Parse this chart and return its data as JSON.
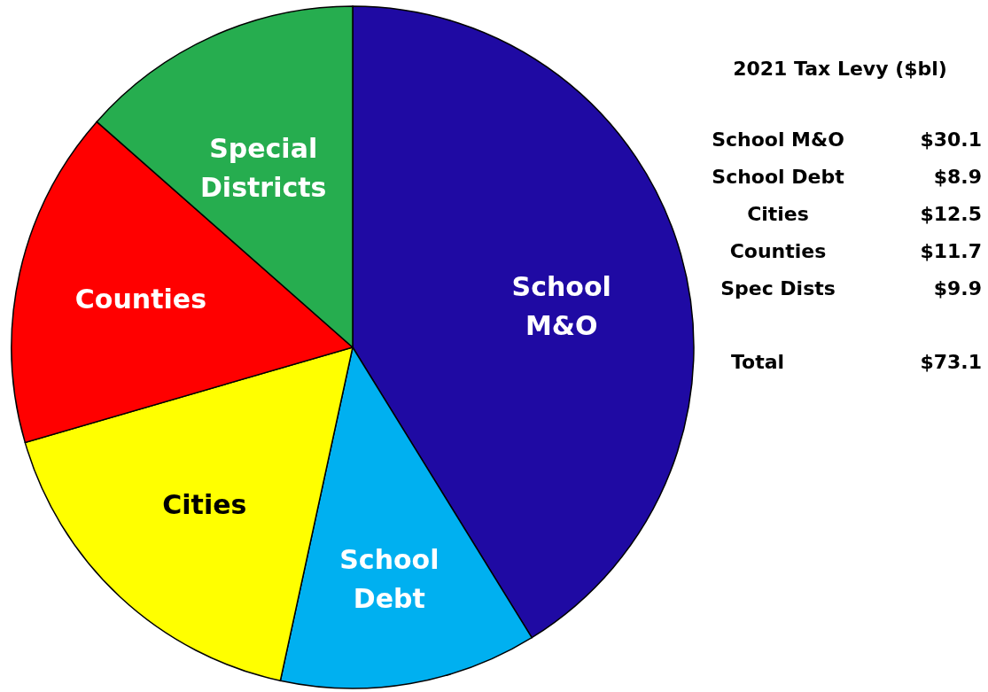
{
  "chart_data": {
    "type": "pie",
    "categories": [
      "School M&O",
      "School Debt",
      "Cities",
      "Counties",
      "Special Districts"
    ],
    "values": [
      41.2,
      12.2,
      17.1,
      16.0,
      13.5
    ],
    "colors": [
      "#1f0aa3",
      "#00b0f0",
      "#ffff00",
      "#ff0000",
      "#26ad4f"
    ],
    "annotations": [
      "2021 Tax Levy ($bl)",
      "School M&O",
      "$30.1",
      "School Debt",
      "$8.9",
      "Cities",
      "$12.5",
      "Counties",
      "$11.7",
      "Spec Dists",
      "$9.9",
      "Total",
      "$73.1"
    ]
  }
}
